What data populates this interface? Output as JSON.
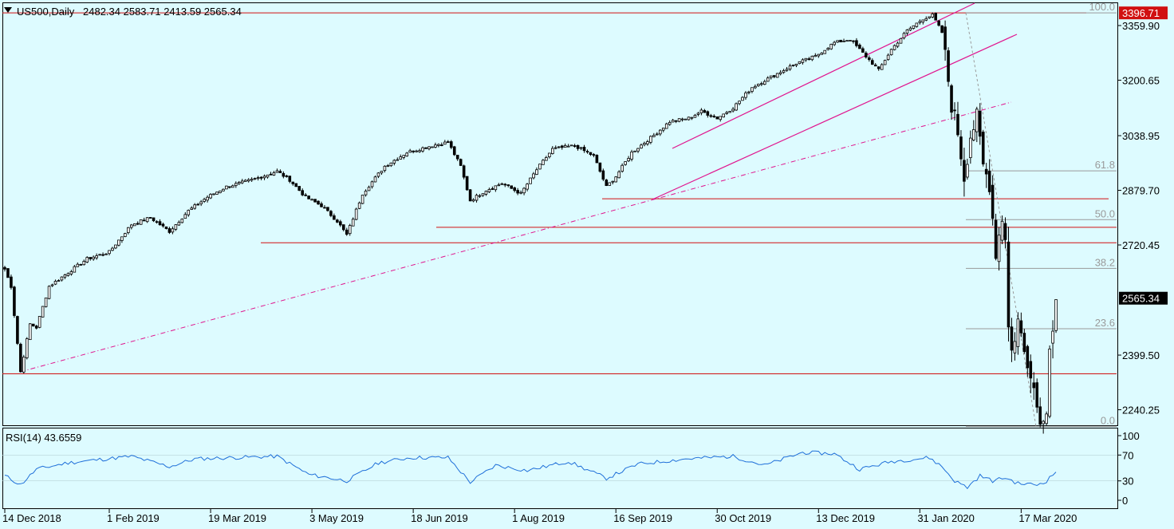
{
  "header": {
    "symbol_timeframe": "US500,Daily",
    "ohlc": "2482.34 2583.71 2413.59 2565.34"
  },
  "rsi_header": "RSI(14) 43.6559",
  "price_axis": {
    "ticks": [
      "3359.90",
      "3200.65",
      "3038.95",
      "2879.70",
      "2720.45",
      "2399.50",
      "2240.25"
    ],
    "tick_values": [
      3359.9,
      3200.65,
      3038.95,
      2879.7,
      2720.45,
      2399.5,
      2240.25
    ],
    "current_price_label": "2565.34",
    "line_price_label": "3396.71"
  },
  "rsi_axis": {
    "ticks": [
      "100",
      "70",
      "30",
      "0"
    ],
    "tick_values": [
      100,
      70,
      30,
      0
    ]
  },
  "time_axis": {
    "labels": [
      "14 Dec 2018",
      "1 Feb 2019",
      "19 Mar 2019",
      "3 May 2019",
      "18 Jun 2019",
      "1 Aug 2019",
      "16 Sep 2019",
      "30 Oct 2019",
      "13 Dec 2019",
      "31 Jan 2020",
      "17 Mar 2020"
    ],
    "label_bars": [
      0,
      33,
      65,
      97,
      129,
      161,
      193,
      225,
      257,
      289,
      321
    ]
  },
  "fib_levels": {
    "labels": [
      "100.0",
      "61.8",
      "50.0",
      "38.2",
      "23.6",
      "0.0"
    ],
    "ratios": [
      1.0,
      0.618,
      0.5,
      0.382,
      0.236,
      0.0
    ],
    "high": 3396.71,
    "low": 2191.86
  },
  "horizontal_lines": [
    3396.71,
    2855,
    2772,
    2727,
    2345
  ],
  "colors": {
    "background": "#ddfbff",
    "candle_up": "#ffffff",
    "candle_down": "#000000",
    "level_line": "#d11010",
    "channel_line": "#e0158e",
    "trend_line": "#e0158e",
    "fib_line": "#9a9a9a",
    "rsi_line": "#1e6fd9",
    "price_badge_bg": "#d11010"
  },
  "chart_data": {
    "type": "candlestick",
    "symbol": "US500",
    "timeframe": "Daily",
    "ylim": [
      2195,
      3425
    ],
    "anchors": [
      {
        "bar": 0,
        "close": 2650
      },
      {
        "bar": 2,
        "close": 2600
      },
      {
        "bar": 5,
        "close": 2351
      },
      {
        "bar": 8,
        "close": 2490
      },
      {
        "bar": 10,
        "close": 2480
      },
      {
        "bar": 14,
        "close": 2600
      },
      {
        "bar": 20,
        "close": 2640
      },
      {
        "bar": 26,
        "close": 2680
      },
      {
        "bar": 33,
        "close": 2700
      },
      {
        "bar": 40,
        "close": 2780
      },
      {
        "bar": 46,
        "close": 2800
      },
      {
        "bar": 52,
        "close": 2760
      },
      {
        "bar": 58,
        "close": 2820
      },
      {
        "bar": 64,
        "close": 2860
      },
      {
        "bar": 70,
        "close": 2890
      },
      {
        "bar": 78,
        "close": 2910
      },
      {
        "bar": 86,
        "close": 2935
      },
      {
        "bar": 90,
        "close": 2910
      },
      {
        "bar": 95,
        "close": 2860
      },
      {
        "bar": 100,
        "close": 2835
      },
      {
        "bar": 105,
        "close": 2790
      },
      {
        "bar": 108,
        "close": 2750
      },
      {
        "bar": 113,
        "close": 2870
      },
      {
        "bar": 120,
        "close": 2950
      },
      {
        "bar": 127,
        "close": 2990
      },
      {
        "bar": 135,
        "close": 3010
      },
      {
        "bar": 140,
        "close": 3020
      },
      {
        "bar": 144,
        "close": 2950
      },
      {
        "bar": 147,
        "close": 2850
      },
      {
        "bar": 152,
        "close": 2880
      },
      {
        "bar": 157,
        "close": 2900
      },
      {
        "bar": 163,
        "close": 2870
      },
      {
        "bar": 168,
        "close": 2940
      },
      {
        "bar": 173,
        "close": 3000
      },
      {
        "bar": 180,
        "close": 3010
      },
      {
        "bar": 186,
        "close": 2980
      },
      {
        "bar": 190,
        "close": 2890
      },
      {
        "bar": 193,
        "close": 2920
      },
      {
        "bar": 198,
        "close": 2990
      },
      {
        "bar": 205,
        "close": 3040
      },
      {
        "bar": 210,
        "close": 3080
      },
      {
        "bar": 216,
        "close": 3090
      },
      {
        "bar": 220,
        "close": 3110
      },
      {
        "bar": 225,
        "close": 3090
      },
      {
        "bar": 230,
        "close": 3120
      },
      {
        "bar": 236,
        "close": 3180
      },
      {
        "bar": 240,
        "close": 3200
      },
      {
        "bar": 246,
        "close": 3230
      },
      {
        "bar": 250,
        "close": 3250
      },
      {
        "bar": 256,
        "close": 3270
      },
      {
        "bar": 262,
        "close": 3310
      },
      {
        "bar": 267,
        "close": 3320
      },
      {
        "bar": 272,
        "close": 3270
      },
      {
        "bar": 276,
        "close": 3230
      },
      {
        "bar": 280,
        "close": 3290
      },
      {
        "bar": 285,
        "close": 3345
      },
      {
        "bar": 290,
        "close": 3380
      },
      {
        "bar": 293,
        "close": 3390
      },
      {
        "bar": 296,
        "close": 3340
      },
      {
        "bar": 299,
        "close": 3130
      },
      {
        "bar": 301,
        "close": 3050
      },
      {
        "bar": 303,
        "close": 2920
      },
      {
        "bar": 305,
        "close": 3040
      },
      {
        "bar": 307,
        "close": 3090
      },
      {
        "bar": 309,
        "close": 2950
      },
      {
        "bar": 311,
        "close": 2900
      },
      {
        "bar": 313,
        "close": 2700
      },
      {
        "bar": 315,
        "close": 2800
      },
      {
        "bar": 316,
        "close": 2750
      },
      {
        "bar": 317,
        "close": 2480
      },
      {
        "bar": 318,
        "close": 2410
      },
      {
        "bar": 320,
        "close": 2500
      },
      {
        "bar": 322,
        "close": 2410
      },
      {
        "bar": 324,
        "close": 2360
      },
      {
        "bar": 326,
        "close": 2250
      },
      {
        "bar": 328,
        "close": 2200
      },
      {
        "bar": 329,
        "close": 2250
      },
      {
        "bar": 330,
        "close": 2440
      },
      {
        "bar": 331,
        "close": 2480
      },
      {
        "bar": 332,
        "close": 2565
      }
    ],
    "rsi_anchors": [
      {
        "bar": 0,
        "v": 38
      },
      {
        "bar": 5,
        "v": 24
      },
      {
        "bar": 10,
        "v": 48
      },
      {
        "bar": 20,
        "v": 58
      },
      {
        "bar": 30,
        "v": 63
      },
      {
        "bar": 40,
        "v": 68
      },
      {
        "bar": 52,
        "v": 52
      },
      {
        "bar": 60,
        "v": 64
      },
      {
        "bar": 72,
        "v": 66
      },
      {
        "bar": 86,
        "v": 68
      },
      {
        "bar": 96,
        "v": 40
      },
      {
        "bar": 108,
        "v": 30
      },
      {
        "bar": 118,
        "v": 58
      },
      {
        "bar": 128,
        "v": 66
      },
      {
        "bar": 140,
        "v": 66
      },
      {
        "bar": 147,
        "v": 28
      },
      {
        "bar": 155,
        "v": 54
      },
      {
        "bar": 165,
        "v": 46
      },
      {
        "bar": 178,
        "v": 60
      },
      {
        "bar": 190,
        "v": 34
      },
      {
        "bar": 200,
        "v": 56
      },
      {
        "bar": 215,
        "v": 64
      },
      {
        "bar": 230,
        "v": 68
      },
      {
        "bar": 240,
        "v": 54
      },
      {
        "bar": 252,
        "v": 74
      },
      {
        "bar": 262,
        "v": 72
      },
      {
        "bar": 270,
        "v": 48
      },
      {
        "bar": 280,
        "v": 60
      },
      {
        "bar": 292,
        "v": 66
      },
      {
        "bar": 296,
        "v": 52
      },
      {
        "bar": 300,
        "v": 30
      },
      {
        "bar": 304,
        "v": 20
      },
      {
        "bar": 308,
        "v": 38
      },
      {
        "bar": 312,
        "v": 30
      },
      {
        "bar": 316,
        "v": 35
      },
      {
        "bar": 320,
        "v": 26
      },
      {
        "bar": 326,
        "v": 24
      },
      {
        "bar": 329,
        "v": 30
      },
      {
        "bar": 332,
        "v": 43.66
      }
    ]
  }
}
